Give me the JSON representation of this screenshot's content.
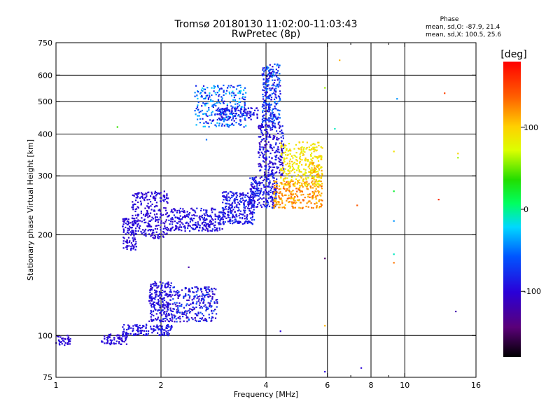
{
  "chart_data": {
    "type": "scatter",
    "title": "Tromsø 20180130 11:02:00-11:03:43",
    "subtitle": "RwPretec (8p)",
    "xlabel": "Frequency [MHz]",
    "ylabel": "Stationary phase Virtual Height [km]",
    "x_scale": "log",
    "y_scale": "log",
    "xlim": [
      1,
      16
    ],
    "ylim": [
      75,
      750
    ],
    "x_ticks": [
      1,
      2,
      4,
      6,
      8,
      10,
      16
    ],
    "x_tick_labels": [
      "1",
      "2",
      "4",
      "6",
      "8",
      "10",
      "16"
    ],
    "x_minor_ticks": [
      7,
      9
    ],
    "y_ticks": [
      75,
      100,
      200,
      300,
      400,
      500,
      600,
      750
    ],
    "y_tick_labels": [
      "75",
      "100",
      "200",
      "300",
      "400",
      "500",
      "600",
      "750"
    ],
    "v_gridlines": [
      2,
      4,
      6,
      8,
      10
    ],
    "h_gridlines": [
      100,
      200,
      300,
      400,
      500,
      600
    ],
    "stats": {
      "title": "Phase",
      "line1": "mean, sd,O: -87.9, 21.4",
      "line2": "mean, sd,X: 100.5, 25.6"
    },
    "colorbar": {
      "label": "[deg]",
      "range": [
        -180,
        180
      ],
      "ticks": [
        100,
        0,
        -100
      ],
      "tick_labels": [
        "100",
        "0",
        "-100"
      ]
    },
    "clusters": [
      {
        "f": [
          1.0,
          1.1
        ],
        "h": [
          93,
          100
        ],
        "phase": [
          -110,
          -90
        ]
      },
      {
        "f": [
          1.35,
          1.6
        ],
        "h": [
          94,
          101
        ],
        "phase": [
          -110,
          -90
        ]
      },
      {
        "f": [
          1.55,
          2.15
        ],
        "h": [
          100,
          108
        ],
        "phase": [
          -105,
          -80
        ]
      },
      {
        "f": [
          1.85,
          2.15
        ],
        "h": [
          110,
          145
        ],
        "phase": [
          -110,
          -80
        ]
      },
      {
        "f": [
          2.15,
          2.9
        ],
        "h": [
          110,
          140
        ],
        "phase": [
          -120,
          -60
        ]
      },
      {
        "f": [
          1.55,
          1.7
        ],
        "h": [
          180,
          225
        ],
        "phase": [
          -110,
          -90
        ]
      },
      {
        "f": [
          1.65,
          2.1
        ],
        "h": [
          195,
          270
        ],
        "phase": [
          -110,
          -90
        ]
      },
      {
        "f": [
          2.1,
          3.0
        ],
        "h": [
          205,
          240
        ],
        "phase": [
          -110,
          -80
        ]
      },
      {
        "f": [
          3.0,
          3.7
        ],
        "h": [
          215,
          270
        ],
        "phase": [
          -110,
          -70
        ]
      },
      {
        "f": [
          3.6,
          4.3
        ],
        "h": [
          240,
          300
        ],
        "phase": [
          -110,
          -70
        ]
      },
      {
        "f": [
          3.8,
          4.5
        ],
        "h": [
          300,
          430
        ],
        "phase": [
          -115,
          -75
        ]
      },
      {
        "f": [
          3.9,
          4.4
        ],
        "h": [
          430,
          650
        ],
        "phase": [
          -110,
          -40
        ]
      },
      {
        "f": [
          2.9,
          3.8
        ],
        "h": [
          440,
          480
        ],
        "phase": [
          -110,
          -70
        ]
      },
      {
        "f": [
          2.5,
          3.5
        ],
        "h": [
          420,
          560
        ],
        "phase": [
          -100,
          -20
        ]
      },
      {
        "f": [
          4.2,
          5.8
        ],
        "h": [
          240,
          290
        ],
        "phase": [
          100,
          140
        ]
      },
      {
        "f": [
          4.4,
          5.8
        ],
        "h": [
          280,
          380
        ],
        "phase": [
          70,
          110
        ]
      },
      {
        "f": [
          5.3,
          5.8
        ],
        "h": [
          290,
          330
        ],
        "phase": [
          80,
          130
        ]
      }
    ],
    "scattered_points": [
      {
        "f": 6.5,
        "h": 665,
        "phase": 110
      },
      {
        "f": 5.9,
        "h": 550,
        "phase": 60
      },
      {
        "f": 9.5,
        "h": 510,
        "phase": -40
      },
      {
        "f": 13.0,
        "h": 530,
        "phase": 150
      },
      {
        "f": 14.2,
        "h": 350,
        "phase": 100
      },
      {
        "f": 14.2,
        "h": 340,
        "phase": 60
      },
      {
        "f": 9.3,
        "h": 355,
        "phase": 90
      },
      {
        "f": 9.3,
        "h": 270,
        "phase": 20
      },
      {
        "f": 9.3,
        "h": 220,
        "phase": -40
      },
      {
        "f": 9.3,
        "h": 175,
        "phase": -10
      },
      {
        "f": 9.3,
        "h": 165,
        "phase": 130
      },
      {
        "f": 7.3,
        "h": 245,
        "phase": 140
      },
      {
        "f": 12.5,
        "h": 255,
        "phase": 160
      },
      {
        "f": 14.0,
        "h": 118,
        "phase": -120
      },
      {
        "f": 5.9,
        "h": 170,
        "phase": -150
      },
      {
        "f": 5.9,
        "h": 107,
        "phase": 110
      },
      {
        "f": 5.9,
        "h": 78,
        "phase": -100
      },
      {
        "f": 7.5,
        "h": 80,
        "phase": -100
      },
      {
        "f": 4.4,
        "h": 103,
        "phase": -100
      },
      {
        "f": 6.3,
        "h": 415,
        "phase": -10
      },
      {
        "f": 1.5,
        "h": 420,
        "phase": 40
      },
      {
        "f": 2.7,
        "h": 385,
        "phase": -50
      },
      {
        "f": 2.4,
        "h": 160,
        "phase": -120
      }
    ]
  }
}
